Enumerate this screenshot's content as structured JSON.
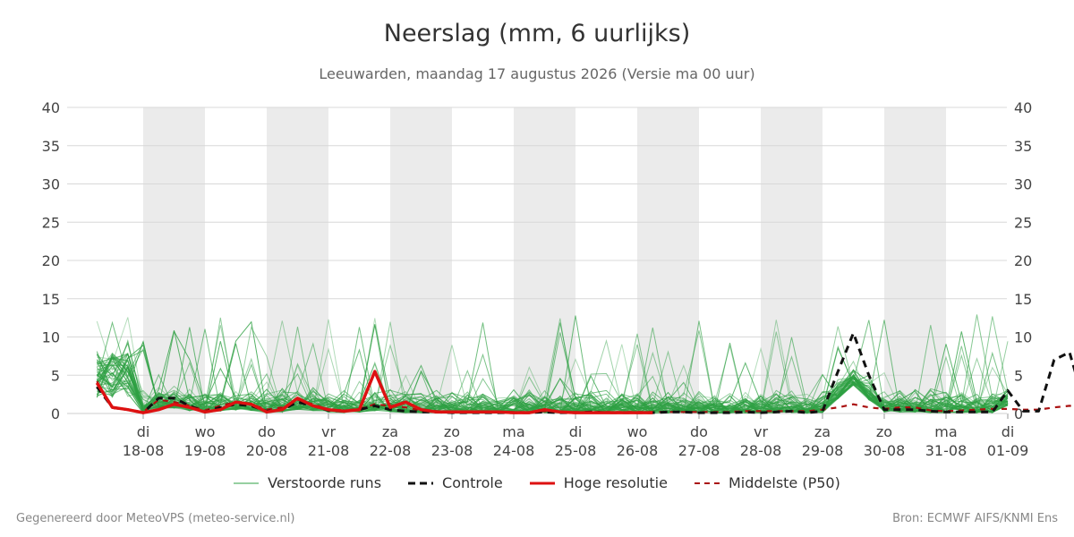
{
  "chart_data": {
    "type": "line",
    "title": "Neerslag (mm, 6 uurlijks)",
    "subtitle": "Leeuwarden, maandag 17 augustus 2026 (Versie ma 00 uur)",
    "ylim": [
      0,
      40
    ],
    "yticks": [
      0,
      5,
      10,
      15,
      20,
      25,
      30,
      35,
      40
    ],
    "grid": true,
    "x_range": [
      "2026-08-17T06:00",
      "2026-09-01T00:00"
    ],
    "x_step_hours": 6,
    "day_ticks": [
      {
        "day": "di",
        "date": "18-08"
      },
      {
        "day": "wo",
        "date": "19-08"
      },
      {
        "day": "do",
        "date": "20-08"
      },
      {
        "day": "vr",
        "date": "21-08"
      },
      {
        "day": "za",
        "date": "22-08"
      },
      {
        "day": "zo",
        "date": "23-08"
      },
      {
        "day": "ma",
        "date": "24-08"
      },
      {
        "day": "di",
        "date": "25-08"
      },
      {
        "day": "wo",
        "date": "26-08"
      },
      {
        "day": "do",
        "date": "27-08"
      },
      {
        "day": "vr",
        "date": "28-08"
      },
      {
        "day": "za",
        "date": "29-08"
      },
      {
        "day": "zo",
        "date": "30-08"
      },
      {
        "day": "ma",
        "date": "31-08"
      },
      {
        "day": "di",
        "date": "01-09"
      }
    ],
    "shaded_days": [
      "18-08",
      "20-08",
      "22-08",
      "24-08",
      "26-08",
      "28-08",
      "30-08"
    ],
    "legend_position": "bottom",
    "series": [
      {
        "name": "Controle",
        "color": "#111111",
        "style": "dashed",
        "values": [
          3.5,
          0.8,
          0.5,
          0.1,
          2.0,
          2.0,
          1.0,
          0.2,
          0.8,
          1.2,
          1.0,
          0.3,
          0.5,
          1.5,
          1.0,
          0.4,
          0.3,
          0.5,
          1.0,
          0.5,
          0.3,
          0.2,
          0.2,
          0.1,
          0.1,
          0.1,
          0.1,
          0.1,
          0.1,
          0.2,
          0.1,
          0.1,
          0.2,
          0.1,
          0.1,
          0.1,
          0.1,
          0.2,
          0.2,
          0.1,
          0.1,
          0.1,
          0.2,
          0.1,
          0.2,
          0.3,
          0.1,
          0.3,
          5.5,
          10.5,
          5.0,
          0.5,
          0.5,
          0.5,
          0.3,
          0.2,
          0.2,
          0.2,
          0.2,
          3.0,
          0.3,
          0.3,
          7.0,
          8.0,
          1.0
        ]
      },
      {
        "name": "Hoge resolutie",
        "color": "#dd1111",
        "style": "solid",
        "values": [
          4.0,
          0.8,
          0.5,
          0.1,
          0.5,
          1.2,
          0.8,
          0.2,
          0.5,
          1.5,
          1.2,
          0.2,
          0.5,
          2.0,
          1.0,
          0.5,
          0.3,
          0.5,
          5.5,
          0.8,
          1.5,
          0.5,
          0.2,
          0.2,
          0.2,
          0.2,
          0.2,
          0.1,
          0.1,
          0.5,
          0.2,
          0.1,
          0.1,
          0.1,
          0.1,
          0.1,
          0.1
        ]
      },
      {
        "name": "Middelste (P50)",
        "color": "#aa1111",
        "style": "dashed",
        "values": [
          4.2,
          0.7,
          0.5,
          0.2,
          1.8,
          1.5,
          1.0,
          0.4,
          1.0,
          1.5,
          1.2,
          0.5,
          0.8,
          1.8,
          1.2,
          0.5,
          0.4,
          0.6,
          1.2,
          1.0,
          0.8,
          0.4,
          0.3,
          0.2,
          0.2,
          0.2,
          0.2,
          0.2,
          0.2,
          0.3,
          0.2,
          0.2,
          0.2,
          0.2,
          0.2,
          0.2,
          0.2,
          0.2,
          0.2,
          0.2,
          0.2,
          0.2,
          0.3,
          0.3,
          0.3,
          0.3,
          0.3,
          0.5,
          0.8,
          1.2,
          0.8,
          0.6,
          0.8,
          0.8,
          0.4,
          0.3,
          0.4,
          0.5,
          0.6,
          0.6,
          0.5,
          0.5,
          0.8,
          1.0,
          0.8
        ]
      }
    ],
    "ensemble": {
      "name": "Verstoorde runs",
      "color": "#2ea043",
      "members": 50
    }
  },
  "legend": {
    "ens": "Verstoorde runs",
    "ctrl": "Controle",
    "hres": "Hoge resolutie",
    "p50": "Middelste (P50)"
  },
  "footer": {
    "left": "Gegenereerd door MeteoVPS (meteo-service.nl)",
    "right": "Bron: ECMWF AIFS/KNMI Ens"
  }
}
